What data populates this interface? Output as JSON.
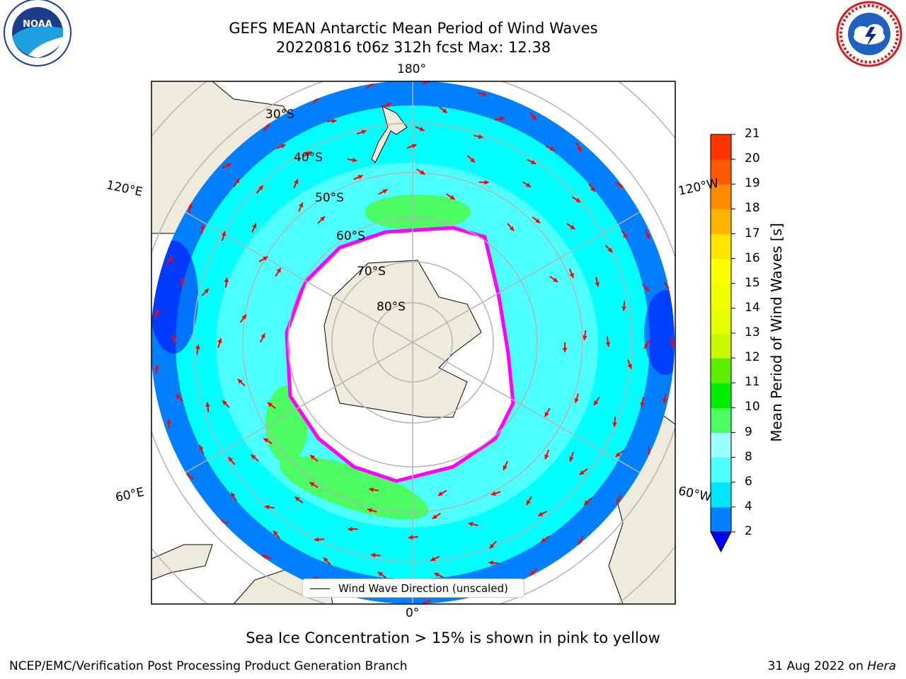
{
  "title": {
    "line1": "GEFS MEAN Antarctic Mean Period of Wind Waves",
    "line2": "20220816 t06z 312h fcst   Max: 12.38"
  },
  "logos": {
    "left": "noaa-logo",
    "left_text": "NOAA",
    "right": "national-weather-service-logo"
  },
  "map": {
    "projection": "south-polar-stereographic",
    "longitude_labels": {
      "top": "180°",
      "bottom": "0°",
      "upper_left": "120°E",
      "upper_right": "120°W",
      "lower_left": "60°E",
      "lower_right": "60°W"
    },
    "latitude_labels": [
      "30°S",
      "40°S",
      "50°S",
      "60°S",
      "70°S",
      "80°S"
    ],
    "legend": "Wind Wave Direction (unscaled)",
    "arrow_color": "#ff0000",
    "land_color": "#efebdc",
    "colors": {
      "ocean_deep": "#0080ff",
      "ocean_mid": "#00ffff",
      "ocean_light": "#4dffff",
      "green": "#4cfc63",
      "ice_edge": "#ff00ff"
    }
  },
  "colorbar": {
    "label": "Mean Period of Wind Waves [s]",
    "ticks": [
      "2",
      "4",
      "6",
      "8",
      "9",
      "10",
      "11",
      "12",
      "13",
      "14",
      "15",
      "16",
      "17",
      "18",
      "19",
      "20",
      "21"
    ],
    "colors": [
      "#0080ff",
      "#00e6ff",
      "#4dffff",
      "#99ffff",
      "#4cfc63",
      "#00f000",
      "#5cf000",
      "#c8fa00",
      "#e6ff00",
      "#f0ff00",
      "#ffff00",
      "#ffe600",
      "#ffb400",
      "#ff8c00",
      "#ff5a00",
      "#ff3200",
      "#ff0000"
    ]
  },
  "footer": {
    "note": "Sea Ice Concentration > 15% is shown in pink to yellow",
    "left": "NCEP/EMC/Verification Post Processing Product Generation Branch",
    "right_date": "31 Aug 2022 on ",
    "right_host": "Hera"
  }
}
